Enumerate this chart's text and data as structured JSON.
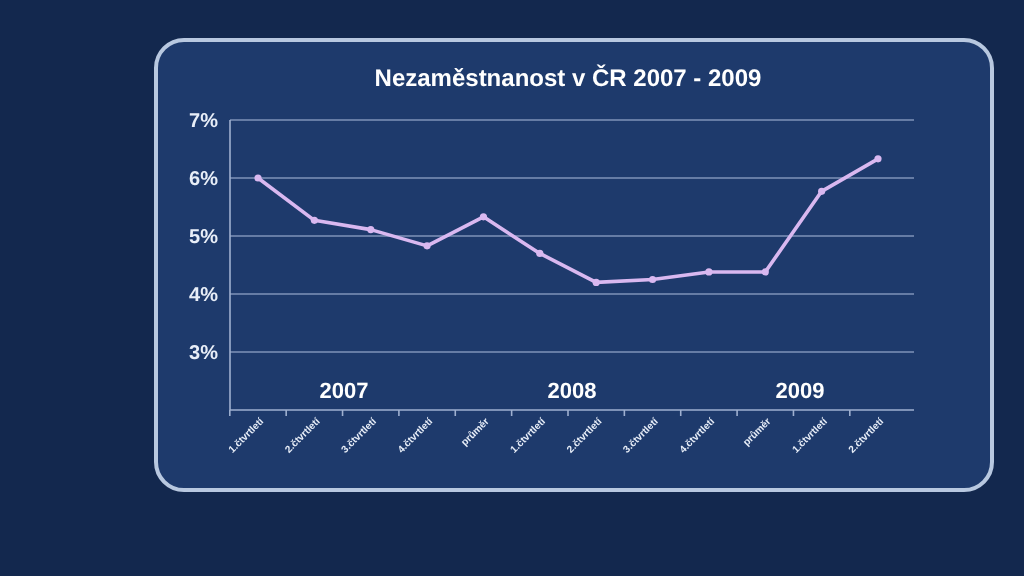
{
  "chart_data": {
    "type": "line",
    "title": "Nezaměstnanost v ČR 2007 - 2009",
    "categories": [
      "1.čtvrtletí",
      "2.čtvrtletí",
      "3.čtvrtletí",
      "4.čtvrtletí",
      "průměr",
      "1.čtvrtletí",
      "2.čtvrtletí",
      "3.čtvrtletí",
      "4.čtvrtletí",
      "průměr",
      "1.čtvrtletí",
      "2.čtvrtletí"
    ],
    "series": [
      {
        "color": "#d9b8f0",
        "values": [
          6.0,
          5.27,
          5.11,
          4.83,
          5.33,
          4.7,
          4.2,
          4.25,
          4.38,
          4.38,
          5.77,
          6.33
        ]
      }
    ],
    "ylim": [
      2,
      7
    ],
    "yticks": [
      {
        "value": 3,
        "label": "3%"
      },
      {
        "value": 4,
        "label": "4%"
      },
      {
        "value": 5,
        "label": "5%"
      },
      {
        "value": 6,
        "label": "6%"
      },
      {
        "value": 7,
        "label": "7%"
      }
    ],
    "grid": "y",
    "marker": "circle",
    "line_style": "solid",
    "annotations": [
      "2007",
      "2008",
      "2009"
    ]
  }
}
